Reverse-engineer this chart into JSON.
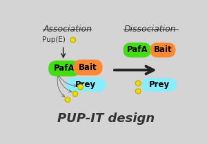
{
  "bg_color": "#d4d4d4",
  "title": "PUP-IT design",
  "title_fontsize": 13,
  "assoc_label": "Association",
  "dissoc_label": "Dissociation",
  "pup_label": "Pup(E)",
  "pafa_label": "PafA",
  "bait_label": "Bait",
  "prey_label": "Prey",
  "green_color": "#44dd11",
  "orange_color": "#ff8833",
  "cyan_color": "#88eeff",
  "yellow_color": "#eedd00",
  "yellow_stroke": "#bbaa00",
  "text_color": "#333333",
  "label_fontsize": 9,
  "small_fontsize": 8
}
